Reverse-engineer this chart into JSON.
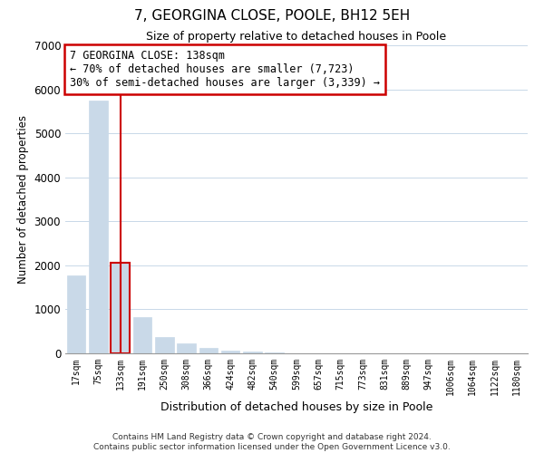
{
  "title": "7, GEORGINA CLOSE, POOLE, BH12 5EH",
  "subtitle": "Size of property relative to detached houses in Poole",
  "xlabel": "Distribution of detached houses by size in Poole",
  "ylabel": "Number of detached properties",
  "bar_labels": [
    "17sqm",
    "75sqm",
    "133sqm",
    "191sqm",
    "250sqm",
    "308sqm",
    "366sqm",
    "424sqm",
    "482sqm",
    "540sqm",
    "599sqm",
    "657sqm",
    "715sqm",
    "773sqm",
    "831sqm",
    "889sqm",
    "947sqm",
    "1006sqm",
    "1064sqm",
    "1122sqm",
    "1180sqm"
  ],
  "bar_values": [
    1780,
    5750,
    2050,
    830,
    370,
    230,
    120,
    55,
    35,
    20,
    10,
    5,
    3,
    0,
    0,
    0,
    0,
    0,
    0,
    0,
    0
  ],
  "bar_color": "#c9d9e8",
  "highlight_bar_index": 2,
  "highlight_color": "#cc0000",
  "marker_label": "7 GEORGINA CLOSE: 138sqm",
  "annotation_line1": "← 70% of detached houses are smaller (7,723)",
  "annotation_line2": "30% of semi-detached houses are larger (3,339) →",
  "annotation_box_color": "#ffffff",
  "annotation_box_edge": "#cc0000",
  "ylim": [
    0,
    7000
  ],
  "yticks": [
    0,
    1000,
    2000,
    3000,
    4000,
    5000,
    6000,
    7000
  ],
  "footer_line1": "Contains HM Land Registry data © Crown copyright and database right 2024.",
  "footer_line2": "Contains public sector information licensed under the Open Government Licence v3.0.",
  "background_color": "#ffffff",
  "grid_color": "#c8d8e8"
}
